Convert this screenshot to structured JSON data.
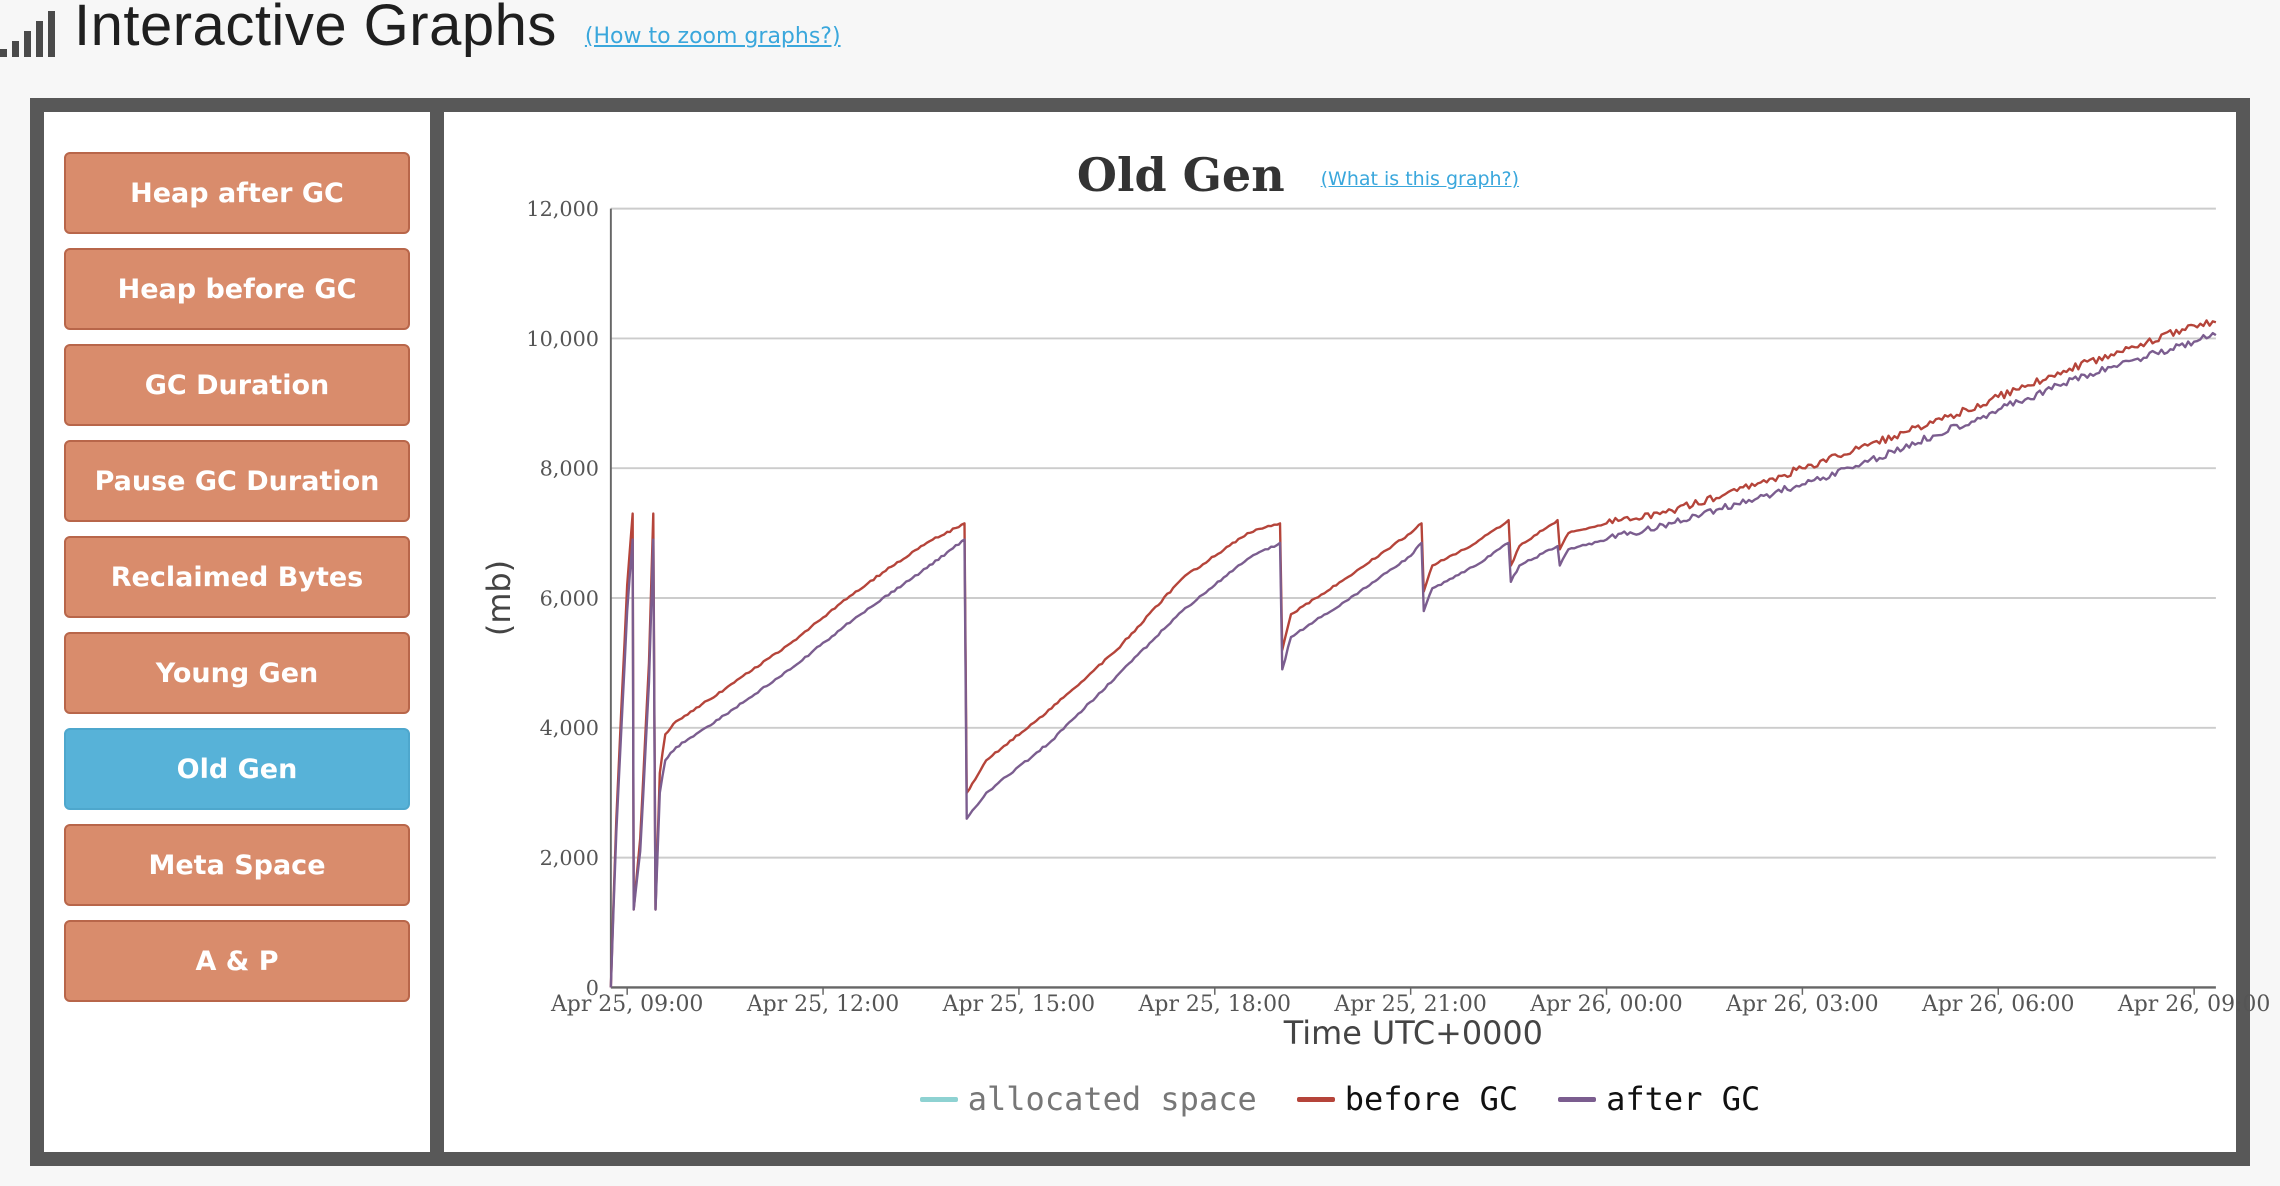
{
  "header": {
    "title": "Interactive Graphs",
    "zoom_link": "(How to zoom graphs?)",
    "icon": "signal-bars-icon"
  },
  "sidebar": {
    "items": [
      {
        "label": "Heap after GC",
        "active": false
      },
      {
        "label": "Heap before GC",
        "active": false
      },
      {
        "label": "GC Duration",
        "active": false
      },
      {
        "label": "Pause GC Duration",
        "active": false
      },
      {
        "label": "Reclaimed Bytes",
        "active": false
      },
      {
        "label": "Young Gen",
        "active": false
      },
      {
        "label": "Old Gen",
        "active": true
      },
      {
        "label": "Meta Space",
        "active": false
      },
      {
        "label": "A & P",
        "active": false
      }
    ]
  },
  "colors": {
    "button": "#d98c6c",
    "button_active": "#57b2d8",
    "frame": "#585858",
    "allocated": "#8ed2d2",
    "before": "#b5443a",
    "after": "#7b5d8f"
  },
  "chart_data": {
    "type": "line",
    "title": "Old Gen",
    "help_link": "(What is this graph?)",
    "xlabel": "Time UTC+0000",
    "ylabel": "(mb)",
    "x_unit": "hours from Apr 25, 08:45 UTC",
    "ylim": [
      0,
      12000
    ],
    "yticks": [
      0,
      2000,
      4000,
      6000,
      8000,
      10000,
      12000
    ],
    "ytick_labels": [
      "0",
      "2,000",
      "4,000",
      "6,000",
      "8,000",
      "10,000",
      "12,000"
    ],
    "xticks": [
      {
        "label": "Apr 25, 09:00",
        "date": "2024-04-25T09:00"
      },
      {
        "label": "Apr 25, 12:00",
        "date": "2024-04-25T12:00"
      },
      {
        "label": "Apr 25, 15:00",
        "date": "2024-04-25T15:00"
      },
      {
        "label": "Apr 25, 18:00",
        "date": "2024-04-25T18:00"
      },
      {
        "label": "Apr 25, 21:00",
        "date": "2024-04-25T21:00"
      },
      {
        "label": "Apr 26, 00:00",
        "date": "2024-04-26T00:00"
      },
      {
        "label": "Apr 26, 03:00",
        "date": "2024-04-26T03:00"
      },
      {
        "label": "Apr 26, 06:00",
        "date": "2024-04-26T06:00"
      },
      {
        "label": "Apr 26, 09:00",
        "date": "2024-04-26T09:00"
      }
    ],
    "grid": true,
    "legend_position": "bottom",
    "series": [
      {
        "name": "allocated space",
        "color": "#8ed2d2",
        "points": []
      },
      {
        "name": "before GC",
        "color": "#b5443a",
        "points": [
          [
            "2024-04-25T08:45",
            0
          ],
          [
            "2024-04-25T08:50",
            2600
          ],
          [
            "2024-04-25T09:00",
            6200
          ],
          [
            "2024-04-25T09:05",
            7300
          ],
          [
            "2024-04-25T09:06",
            1200
          ],
          [
            "2024-04-25T09:12",
            2300
          ],
          [
            "2024-04-25T09:20",
            5000
          ],
          [
            "2024-04-25T09:24",
            7300
          ],
          [
            "2024-04-25T09:26",
            1200
          ],
          [
            "2024-04-25T09:30",
            3300
          ],
          [
            "2024-04-25T09:35",
            3900
          ],
          [
            "2024-04-25T09:45",
            4100
          ],
          [
            "2024-04-25T10:30",
            4600
          ],
          [
            "2024-04-25T11:30",
            5300
          ],
          [
            "2024-04-25T12:30",
            6100
          ],
          [
            "2024-04-25T13:30",
            6800
          ],
          [
            "2024-04-25T14:10",
            7150
          ],
          [
            "2024-04-25T14:12",
            3000
          ],
          [
            "2024-04-25T14:30",
            3500
          ],
          [
            "2024-04-25T15:30",
            4300
          ],
          [
            "2024-04-25T16:30",
            5200
          ],
          [
            "2024-04-25T17:30",
            6300
          ],
          [
            "2024-04-25T18:30",
            7000
          ],
          [
            "2024-04-25T19:00",
            7150
          ],
          [
            "2024-04-25T19:02",
            5200
          ],
          [
            "2024-04-25T19:10",
            5750
          ],
          [
            "2024-04-25T20:00",
            6300
          ],
          [
            "2024-04-25T21:00",
            7000
          ],
          [
            "2024-04-25T21:10",
            7150
          ],
          [
            "2024-04-25T21:12",
            6100
          ],
          [
            "2024-04-25T21:20",
            6500
          ],
          [
            "2024-04-25T22:00",
            6850
          ],
          [
            "2024-04-25T22:30",
            7200
          ],
          [
            "2024-04-25T22:32",
            6500
          ],
          [
            "2024-04-25T22:40",
            6800
          ],
          [
            "2024-04-25T23:15",
            7200
          ],
          [
            "2024-04-25T23:17",
            6750
          ],
          [
            "2024-04-25T23:25",
            7000
          ],
          [
            "2024-04-26T00:00",
            7150
          ],
          [
            "2024-04-26T01:00",
            7350
          ],
          [
            "2024-04-26T02:00",
            7650
          ],
          [
            "2024-04-26T03:00",
            8000
          ],
          [
            "2024-04-26T04:00",
            8350
          ],
          [
            "2024-04-26T05:00",
            8700
          ],
          [
            "2024-04-26T06:00",
            9100
          ],
          [
            "2024-04-26T07:00",
            9500
          ],
          [
            "2024-04-26T08:00",
            9850
          ],
          [
            "2024-04-26T09:00",
            10200
          ],
          [
            "2024-04-26T09:20",
            10250
          ]
        ]
      },
      {
        "name": "after GC",
        "color": "#7b5d8f",
        "points": [
          [
            "2024-04-25T08:45",
            0
          ],
          [
            "2024-04-25T08:50",
            2400
          ],
          [
            "2024-04-25T09:00",
            5800
          ],
          [
            "2024-04-25T09:05",
            6900
          ],
          [
            "2024-04-25T09:06",
            1200
          ],
          [
            "2024-04-25T09:12",
            2100
          ],
          [
            "2024-04-25T09:20",
            4700
          ],
          [
            "2024-04-25T09:24",
            6900
          ],
          [
            "2024-04-25T09:26",
            1200
          ],
          [
            "2024-04-25T09:30",
            3000
          ],
          [
            "2024-04-25T09:35",
            3500
          ],
          [
            "2024-04-25T09:45",
            3700
          ],
          [
            "2024-04-25T10:30",
            4200
          ],
          [
            "2024-04-25T11:30",
            4900
          ],
          [
            "2024-04-25T12:30",
            5700
          ],
          [
            "2024-04-25T13:30",
            6400
          ],
          [
            "2024-04-25T14:10",
            6900
          ],
          [
            "2024-04-25T14:12",
            2600
          ],
          [
            "2024-04-25T14:30",
            3000
          ],
          [
            "2024-04-25T15:30",
            3800
          ],
          [
            "2024-04-25T16:30",
            4800
          ],
          [
            "2024-04-25T17:30",
            5800
          ],
          [
            "2024-04-25T18:30",
            6600
          ],
          [
            "2024-04-25T19:00",
            6850
          ],
          [
            "2024-04-25T19:02",
            4900
          ],
          [
            "2024-04-25T19:10",
            5400
          ],
          [
            "2024-04-25T20:00",
            5950
          ],
          [
            "2024-04-25T21:00",
            6650
          ],
          [
            "2024-04-25T21:10",
            6850
          ],
          [
            "2024-04-25T21:12",
            5800
          ],
          [
            "2024-04-25T21:20",
            6150
          ],
          [
            "2024-04-25T22:00",
            6500
          ],
          [
            "2024-04-25T22:30",
            6850
          ],
          [
            "2024-04-25T22:32",
            6250
          ],
          [
            "2024-04-25T22:40",
            6500
          ],
          [
            "2024-04-25T23:15",
            6800
          ],
          [
            "2024-04-25T23:17",
            6500
          ],
          [
            "2024-04-25T23:25",
            6750
          ],
          [
            "2024-04-26T00:00",
            6900
          ],
          [
            "2024-04-26T01:00",
            7150
          ],
          [
            "2024-04-26T02:00",
            7450
          ],
          [
            "2024-04-26T03:00",
            7750
          ],
          [
            "2024-04-26T04:00",
            8100
          ],
          [
            "2024-04-26T05:00",
            8500
          ],
          [
            "2024-04-26T06:00",
            8900
          ],
          [
            "2024-04-26T07:00",
            9300
          ],
          [
            "2024-04-26T08:00",
            9650
          ],
          [
            "2024-04-26T09:00",
            9950
          ],
          [
            "2024-04-26T09:20",
            10050
          ]
        ]
      }
    ]
  }
}
